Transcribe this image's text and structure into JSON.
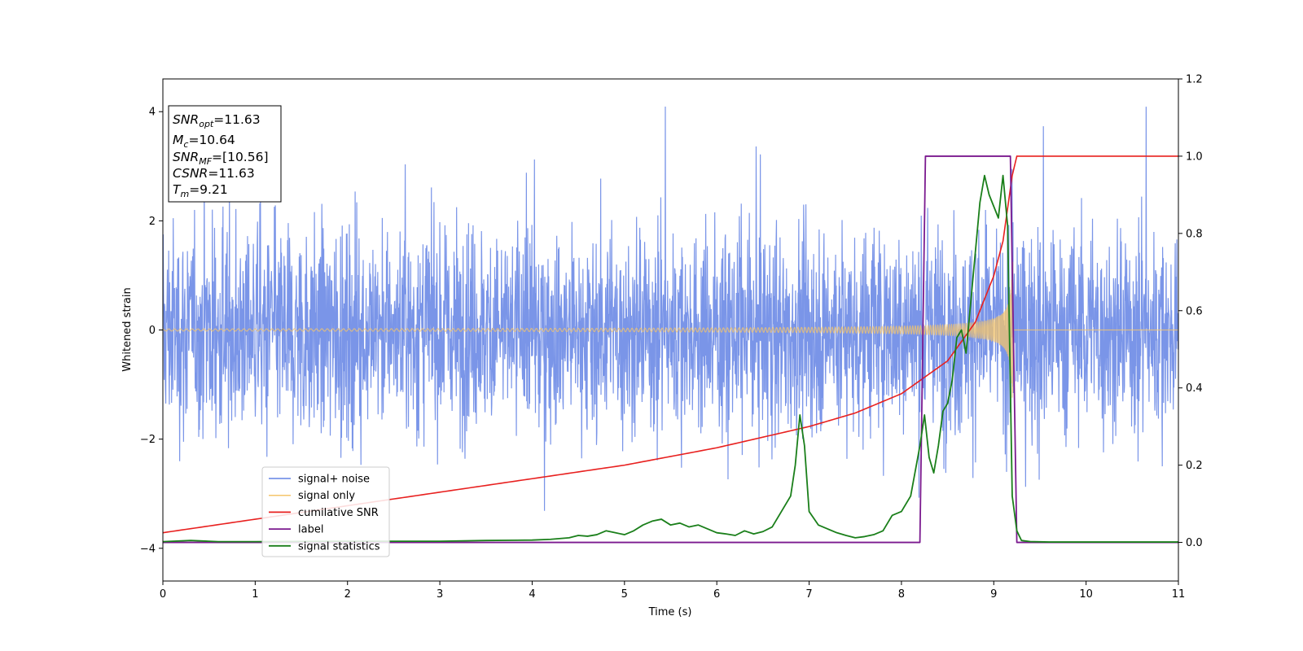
{
  "chart_data": {
    "type": "line",
    "xlabel": "Time (s)",
    "ylabel": "Whitened strain",
    "xlim": [
      0,
      11
    ],
    "ylim": [
      -4.6,
      4.6
    ],
    "y2lim": [
      -0.1,
      1.2
    ],
    "grid": false,
    "legend_position": "lower-left",
    "xticks": [
      "0",
      "1",
      "2",
      "3",
      "4",
      "5",
      "6",
      "7",
      "8",
      "9",
      "10",
      "11"
    ],
    "yticks": [
      "4",
      "2",
      "0",
      "−2",
      "−4"
    ],
    "y2ticks": [
      "1.2",
      "1.0",
      "0.8",
      "0.6",
      "0.4",
      "0.2",
      "0.0"
    ],
    "annotation": {
      "snr_opt": {
        "var": "SNR",
        "sub": "opt",
        "value": "=11.63"
      },
      "mc": {
        "var": "M",
        "sub": "c",
        "value": "=10.64"
      },
      "snr_mf": {
        "var": "SNR",
        "sub": "MF",
        "value": "=[10.56]"
      },
      "csnr": {
        "var": "CSNR",
        "value": "=11.63"
      },
      "tm": {
        "var": "T",
        "sub": "m",
        "value": "=9.21"
      }
    },
    "series": [
      {
        "name": "signal+ noise",
        "color": "#7a95e8",
        "axis": "left",
        "description_values": "Gaussian-like noise with std ≈ 1, spanning roughly −3.9 to 4.2 across 0–11 s"
      },
      {
        "name": "signal only",
        "color": "#f5c66b",
        "axis": "left",
        "chirp": {
          "t_merge": 9.21,
          "amp_start": 0.02,
          "amp_end": 1.25
        }
      },
      {
        "name": "cumilative SNR",
        "color": "#e8201f",
        "axis": "right",
        "x": [
          0,
          1,
          2,
          3,
          4,
          5,
          6,
          7,
          7.5,
          8,
          8.5,
          8.8,
          9.0,
          9.1,
          9.2,
          9.25,
          11
        ],
        "y": [
          0.025,
          0.06,
          0.095,
          0.13,
          0.165,
          0.2,
          0.245,
          0.3,
          0.335,
          0.385,
          0.47,
          0.57,
          0.69,
          0.78,
          0.95,
          1.0,
          1.0
        ]
      },
      {
        "name": "label",
        "color": "#7b1a8f",
        "axis": "right",
        "x": [
          0,
          8.2,
          8.26,
          9.18,
          9.25,
          11
        ],
        "y": [
          0,
          0,
          1,
          1,
          0,
          0
        ]
      },
      {
        "name": "signal statistics",
        "color": "#1a7f1a",
        "axis": "right",
        "x": [
          0,
          0.3,
          0.6,
          1,
          2,
          3,
          3.5,
          4.0,
          4.2,
          4.4,
          4.5,
          4.6,
          4.7,
          4.8,
          4.9,
          5.0,
          5.1,
          5.2,
          5.3,
          5.4,
          5.5,
          5.6,
          5.7,
          5.8,
          5.9,
          6.0,
          6.1,
          6.2,
          6.3,
          6.4,
          6.5,
          6.6,
          6.7,
          6.8,
          6.85,
          6.9,
          6.95,
          7.0,
          7.1,
          7.2,
          7.3,
          7.4,
          7.5,
          7.6,
          7.7,
          7.8,
          7.85,
          7.9,
          8.0,
          8.1,
          8.2,
          8.25,
          8.3,
          8.35,
          8.4,
          8.45,
          8.5,
          8.55,
          8.6,
          8.65,
          8.7,
          8.75,
          8.8,
          8.85,
          8.9,
          8.95,
          9.0,
          9.05,
          9.1,
          9.15,
          9.2,
          9.25,
          9.3,
          9.4,
          9.6,
          10,
          11
        ],
        "y": [
          0.002,
          0.005,
          0.002,
          0.002,
          0.003,
          0.003,
          0.005,
          0.006,
          0.008,
          0.012,
          0.018,
          0.016,
          0.02,
          0.03,
          0.025,
          0.02,
          0.03,
          0.045,
          0.055,
          0.06,
          0.045,
          0.05,
          0.04,
          0.045,
          0.035,
          0.025,
          0.022,
          0.018,
          0.03,
          0.022,
          0.028,
          0.04,
          0.08,
          0.12,
          0.2,
          0.33,
          0.25,
          0.08,
          0.045,
          0.035,
          0.025,
          0.018,
          0.012,
          0.015,
          0.02,
          0.03,
          0.05,
          0.07,
          0.08,
          0.12,
          0.25,
          0.33,
          0.22,
          0.18,
          0.25,
          0.34,
          0.36,
          0.42,
          0.53,
          0.55,
          0.49,
          0.62,
          0.75,
          0.88,
          0.95,
          0.9,
          0.87,
          0.84,
          0.95,
          0.82,
          0.12,
          0.03,
          0.005,
          0.002,
          0.001,
          0.001,
          0.001
        ]
      }
    ]
  }
}
